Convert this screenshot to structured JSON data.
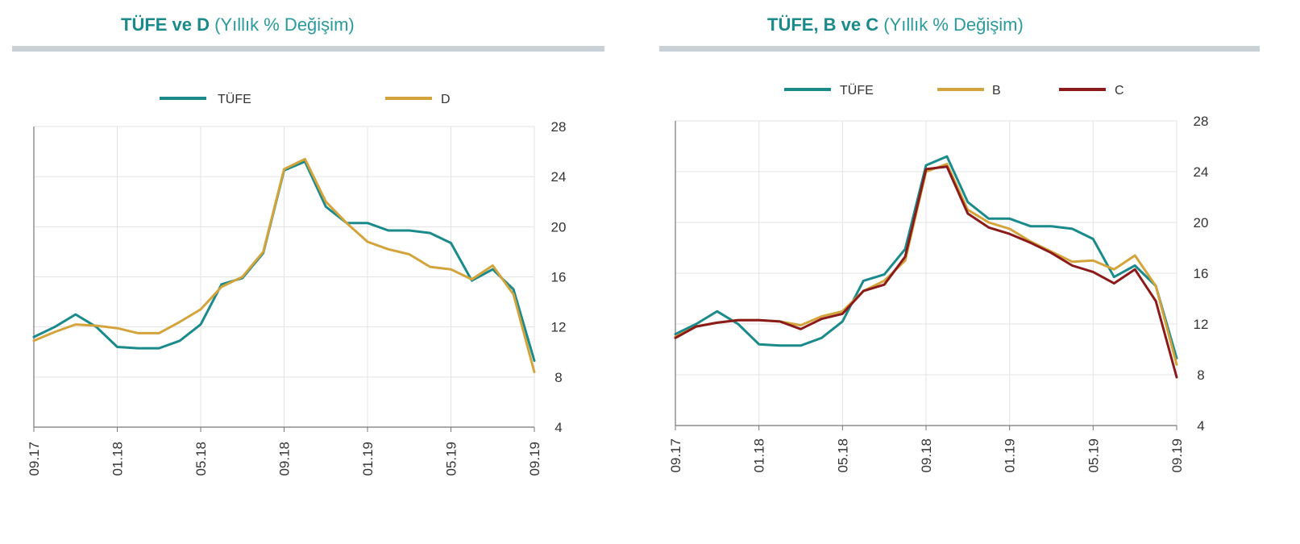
{
  "charts": [
    {
      "title_strong": "TÜFE ve D",
      "title_sub": " (Yıllık % Değişim)"
    },
    {
      "title_strong": "TÜFE, B ve C",
      "title_sub": " (Yıllık % Değişim)"
    }
  ],
  "chart_data": [
    {
      "type": "line",
      "title": "TÜFE ve D (Yıllık % Değişim)",
      "xlabel": "",
      "ylabel": "",
      "ylim": [
        4,
        28
      ],
      "y_ticks": [
        4,
        8,
        12,
        16,
        20,
        24,
        28
      ],
      "x_tick_labels": [
        "09.17",
        "01.18",
        "05.18",
        "09.18",
        "01.19",
        "05.19",
        "09.19"
      ],
      "x_tick_index": [
        0,
        4,
        8,
        12,
        16,
        20,
        24
      ],
      "grid": true,
      "legend_position": "top",
      "series": [
        {
          "name": "TÜFE",
          "color": "#1a8a8a",
          "values": [
            11.2,
            12.0,
            13.0,
            12.0,
            10.4,
            10.3,
            10.3,
            10.9,
            12.2,
            15.4,
            15.9,
            17.9,
            24.5,
            25.2,
            21.6,
            20.3,
            20.3,
            19.7,
            19.7,
            19.5,
            18.7,
            15.7,
            16.6,
            15.0,
            9.3
          ]
        },
        {
          "name": "D",
          "color": "#d4a43c",
          "values": [
            10.9,
            11.6,
            12.2,
            12.1,
            11.9,
            11.5,
            11.5,
            12.4,
            13.4,
            15.2,
            16.0,
            18.0,
            24.6,
            25.4,
            22.0,
            20.3,
            18.8,
            18.2,
            17.8,
            16.8,
            16.6,
            15.8,
            16.9,
            14.6,
            8.4
          ]
        }
      ]
    },
    {
      "type": "line",
      "title": "TÜFE, B ve C (Yıllık % Değişim)",
      "xlabel": "",
      "ylabel": "",
      "ylim": [
        4,
        28
      ],
      "y_ticks": [
        4,
        8,
        12,
        16,
        20,
        24,
        28
      ],
      "x_tick_labels": [
        "09.17",
        "01.18",
        "05.18",
        "09.18",
        "01.19",
        "05.19",
        "09.19"
      ],
      "x_tick_index": [
        0,
        4,
        8,
        12,
        16,
        20,
        24
      ],
      "grid": true,
      "legend_position": "top",
      "series": [
        {
          "name": "TÜFE",
          "color": "#1a8a8a",
          "values": [
            11.2,
            12.0,
            13.0,
            12.0,
            10.4,
            10.3,
            10.3,
            10.9,
            12.2,
            15.4,
            15.9,
            17.9,
            24.5,
            25.2,
            21.6,
            20.3,
            20.3,
            19.7,
            19.7,
            19.5,
            18.7,
            15.7,
            16.6,
            15.0,
            9.3
          ]
        },
        {
          "name": "B",
          "color": "#d4a43c",
          "values": [
            11.0,
            11.8,
            12.1,
            12.3,
            12.3,
            12.2,
            11.9,
            12.6,
            13.0,
            14.6,
            15.4,
            17.0,
            24.0,
            24.6,
            21.0,
            20.0,
            19.5,
            18.5,
            17.7,
            16.9,
            17.0,
            16.3,
            17.4,
            15.0,
            8.8
          ]
        },
        {
          "name": "C",
          "color": "#8b1a1a",
          "values": [
            10.9,
            11.8,
            12.1,
            12.3,
            12.3,
            12.2,
            11.6,
            12.4,
            12.8,
            14.6,
            15.1,
            17.3,
            24.2,
            24.4,
            20.7,
            19.6,
            19.1,
            18.4,
            17.6,
            16.6,
            16.1,
            15.2,
            16.3,
            13.8,
            7.8
          ]
        }
      ]
    }
  ]
}
